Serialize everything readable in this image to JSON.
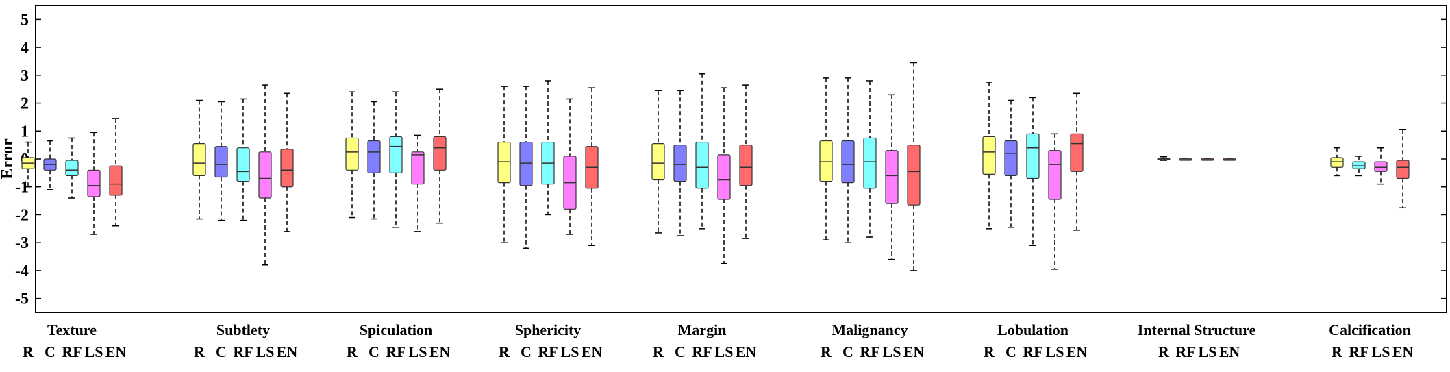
{
  "chart_data": {
    "type": "box",
    "ylabel": "Error",
    "xlabel": "",
    "ylim": [
      -5.5,
      5.5
    ],
    "yticks": [
      5,
      4,
      3,
      2,
      1,
      0,
      -1,
      -2,
      -3,
      -4,
      -5
    ],
    "grid": false,
    "method_colors": {
      "R": "#FFFF80",
      "C": "#7F7FFF",
      "RF": "#7FFFFF",
      "LS": "#FF7FFF",
      "EN": "#FF6B6B"
    },
    "groups": [
      {
        "name": "Texture",
        "methods": [
          "R",
          "C",
          "RF",
          "LS",
          "EN"
        ],
        "boxes": [
          {
            "method": "R",
            "whisker_low": -1.0,
            "q1": -0.35,
            "median": -0.15,
            "q3": 0.05,
            "whisker_high": 0.6
          },
          {
            "method": "C",
            "whisker_low": -1.1,
            "q1": -0.4,
            "median": -0.2,
            "q3": 0.0,
            "whisker_high": 0.65
          },
          {
            "method": "RF",
            "whisker_low": -1.4,
            "q1": -0.6,
            "median": -0.4,
            "q3": -0.05,
            "whisker_high": 0.75
          },
          {
            "method": "LS",
            "whisker_low": -2.7,
            "q1": -1.35,
            "median": -0.95,
            "q3": -0.4,
            "whisker_high": 0.95
          },
          {
            "method": "EN",
            "whisker_low": -2.4,
            "q1": -1.3,
            "median": -0.9,
            "q3": -0.25,
            "whisker_high": 1.45
          }
        ]
      },
      {
        "name": "Subtlety",
        "methods": [
          "R",
          "C",
          "RF",
          "LS",
          "EN"
        ],
        "boxes": [
          {
            "method": "R",
            "whisker_low": -2.15,
            "q1": -0.6,
            "median": -0.15,
            "q3": 0.55,
            "whisker_high": 2.1
          },
          {
            "method": "C",
            "whisker_low": -2.2,
            "q1": -0.65,
            "median": -0.2,
            "q3": 0.45,
            "whisker_high": 2.05
          },
          {
            "method": "RF",
            "whisker_low": -2.2,
            "q1": -0.8,
            "median": -0.45,
            "q3": 0.4,
            "whisker_high": 2.15
          },
          {
            "method": "LS",
            "whisker_low": -3.8,
            "q1": -1.4,
            "median": -0.7,
            "q3": 0.25,
            "whisker_high": 2.65
          },
          {
            "method": "EN",
            "whisker_low": -2.6,
            "q1": -1.0,
            "median": -0.4,
            "q3": 0.35,
            "whisker_high": 2.35
          }
        ]
      },
      {
        "name": "Spiculation",
        "methods": [
          "R",
          "C",
          "RF",
          "LS",
          "EN"
        ],
        "boxes": [
          {
            "method": "R",
            "whisker_low": -2.1,
            "q1": -0.4,
            "median": 0.25,
            "q3": 0.75,
            "whisker_high": 2.4
          },
          {
            "method": "C",
            "whisker_low": -2.15,
            "q1": -0.5,
            "median": 0.25,
            "q3": 0.65,
            "whisker_high": 2.05
          },
          {
            "method": "RF",
            "whisker_low": -2.45,
            "q1": -0.5,
            "median": 0.45,
            "q3": 0.8,
            "whisker_high": 2.4
          },
          {
            "method": "LS",
            "whisker_low": -2.6,
            "q1": -0.9,
            "median": 0.15,
            "q3": 0.25,
            "whisker_high": 0.85
          },
          {
            "method": "EN",
            "whisker_low": -2.3,
            "q1": -0.4,
            "median": 0.4,
            "q3": 0.8,
            "whisker_high": 2.5
          }
        ]
      },
      {
        "name": "Sphericity",
        "methods": [
          "R",
          "C",
          "RF",
          "LS",
          "EN"
        ],
        "boxes": [
          {
            "method": "R",
            "whisker_low": -3.0,
            "q1": -0.85,
            "median": -0.1,
            "q3": 0.6,
            "whisker_high": 2.6
          },
          {
            "method": "C",
            "whisker_low": -3.2,
            "q1": -0.95,
            "median": -0.15,
            "q3": 0.6,
            "whisker_high": 2.6
          },
          {
            "method": "RF",
            "whisker_low": -2.0,
            "q1": -0.9,
            "median": -0.15,
            "q3": 0.6,
            "whisker_high": 2.8
          },
          {
            "method": "LS",
            "whisker_low": -2.7,
            "q1": -1.8,
            "median": -0.85,
            "q3": 0.1,
            "whisker_high": 2.15
          },
          {
            "method": "EN",
            "whisker_low": -3.1,
            "q1": -1.05,
            "median": -0.3,
            "q3": 0.45,
            "whisker_high": 2.55
          }
        ]
      },
      {
        "name": "Margin",
        "methods": [
          "R",
          "C",
          "RF",
          "LS",
          "EN"
        ],
        "boxes": [
          {
            "method": "R",
            "whisker_low": -2.65,
            "q1": -0.75,
            "median": -0.15,
            "q3": 0.55,
            "whisker_high": 2.45
          },
          {
            "method": "C",
            "whisker_low": -2.75,
            "q1": -0.8,
            "median": -0.2,
            "q3": 0.5,
            "whisker_high": 2.45
          },
          {
            "method": "RF",
            "whisker_low": -2.5,
            "q1": -1.05,
            "median": -0.3,
            "q3": 0.6,
            "whisker_high": 3.05
          },
          {
            "method": "LS",
            "whisker_low": -3.75,
            "q1": -1.45,
            "median": -0.75,
            "q3": 0.15,
            "whisker_high": 2.55
          },
          {
            "method": "EN",
            "whisker_low": -2.85,
            "q1": -0.95,
            "median": -0.3,
            "q3": 0.5,
            "whisker_high": 2.65
          }
        ]
      },
      {
        "name": "Malignancy",
        "methods": [
          "R",
          "C",
          "RF",
          "LS",
          "EN"
        ],
        "boxes": [
          {
            "method": "R",
            "whisker_low": -2.9,
            "q1": -0.8,
            "median": -0.1,
            "q3": 0.65,
            "whisker_high": 2.9
          },
          {
            "method": "C",
            "whisker_low": -3.0,
            "q1": -0.85,
            "median": -0.2,
            "q3": 0.65,
            "whisker_high": 2.9
          },
          {
            "method": "RF",
            "whisker_low": -2.8,
            "q1": -1.05,
            "median": -0.1,
            "q3": 0.75,
            "whisker_high": 2.8
          },
          {
            "method": "LS",
            "whisker_low": -3.6,
            "q1": -1.6,
            "median": -0.6,
            "q3": 0.3,
            "whisker_high": 2.3
          },
          {
            "method": "EN",
            "whisker_low": -4.0,
            "q1": -1.65,
            "median": -0.45,
            "q3": 0.5,
            "whisker_high": 3.45
          }
        ]
      },
      {
        "name": "Lobulation",
        "methods": [
          "R",
          "C",
          "RF",
          "LS",
          "EN"
        ],
        "boxes": [
          {
            "method": "R",
            "whisker_low": -2.5,
            "q1": -0.55,
            "median": 0.25,
            "q3": 0.8,
            "whisker_high": 2.75
          },
          {
            "method": "C",
            "whisker_low": -2.45,
            "q1": -0.6,
            "median": 0.2,
            "q3": 0.65,
            "whisker_high": 2.1
          },
          {
            "method": "RF",
            "whisker_low": -3.1,
            "q1": -0.7,
            "median": 0.4,
            "q3": 0.9,
            "whisker_high": 2.2
          },
          {
            "method": "LS",
            "whisker_low": -3.95,
            "q1": -1.45,
            "median": -0.2,
            "q3": 0.3,
            "whisker_high": 0.9
          },
          {
            "method": "EN",
            "whisker_low": -2.55,
            "q1": -0.45,
            "median": 0.55,
            "q3": 0.9,
            "whisker_high": 2.35
          }
        ]
      },
      {
        "name": "Internal Structure",
        "methods": [
          "R",
          "RF",
          "LS",
          "EN"
        ],
        "boxes": [
          {
            "method": "R",
            "whisker_low": -0.05,
            "q1": -0.02,
            "median": 0.0,
            "q3": 0.02,
            "whisker_high": 0.08
          },
          {
            "method": "RF",
            "whisker_low": 0.0,
            "q1": 0.0,
            "median": 0.0,
            "q3": 0.0,
            "whisker_high": 0.0
          },
          {
            "method": "LS",
            "whisker_low": 0.0,
            "q1": 0.0,
            "median": 0.0,
            "q3": 0.0,
            "whisker_high": 0.0
          },
          {
            "method": "EN",
            "whisker_low": 0.0,
            "q1": 0.0,
            "median": 0.0,
            "q3": 0.0,
            "whisker_high": 0.0
          }
        ]
      },
      {
        "name": "Calcification",
        "methods": [
          "R",
          "RF",
          "LS",
          "EN"
        ],
        "boxes": [
          {
            "method": "R",
            "whisker_low": -0.6,
            "q1": -0.3,
            "median": -0.1,
            "q3": 0.05,
            "whisker_high": 0.4
          },
          {
            "method": "RF",
            "whisker_low": -0.6,
            "q1": -0.35,
            "median": -0.25,
            "q3": -0.1,
            "whisker_high": 0.1
          },
          {
            "method": "LS",
            "whisker_low": -0.9,
            "q1": -0.45,
            "median": -0.3,
            "q3": -0.1,
            "whisker_high": 0.4
          },
          {
            "method": "EN",
            "whisker_low": -1.75,
            "q1": -0.7,
            "median": -0.3,
            "q3": -0.05,
            "whisker_high": 1.05
          }
        ]
      }
    ]
  }
}
